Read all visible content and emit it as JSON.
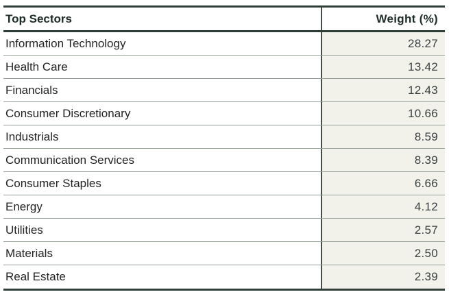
{
  "table": {
    "columns": [
      {
        "label": "Top Sectors"
      },
      {
        "label": "Weight (%)"
      }
    ],
    "rows": [
      {
        "sector": "Information Technology",
        "weight": "28.27"
      },
      {
        "sector": "Health Care",
        "weight": "13.42"
      },
      {
        "sector": "Financials",
        "weight": "12.43"
      },
      {
        "sector": "Consumer Discretionary",
        "weight": "10.66"
      },
      {
        "sector": "Industrials",
        "weight": "8.59"
      },
      {
        "sector": "Communication Services",
        "weight": "8.39"
      },
      {
        "sector": "Consumer Staples",
        "weight": "6.66"
      },
      {
        "sector": "Energy",
        "weight": "4.12"
      },
      {
        "sector": "Utilities",
        "weight": "2.57"
      },
      {
        "sector": "Materials",
        "weight": "2.50"
      },
      {
        "sector": "Real Estate",
        "weight": "2.39"
      }
    ]
  },
  "chart_data": {
    "type": "table",
    "title": "Top Sectors",
    "columns": [
      "Top Sectors",
      "Weight (%)"
    ],
    "rows": [
      [
        "Information Technology",
        28.27
      ],
      [
        "Health Care",
        13.42
      ],
      [
        "Financials",
        12.43
      ],
      [
        "Consumer Discretionary",
        10.66
      ],
      [
        "Industrials",
        8.59
      ],
      [
        "Communication Services",
        8.39
      ],
      [
        "Consumer Staples",
        6.66
      ],
      [
        "Energy",
        4.12
      ],
      [
        "Utilities",
        2.57
      ],
      [
        "Materials",
        2.5
      ],
      [
        "Real Estate",
        2.39
      ]
    ]
  },
  "colors": {
    "thick_border": "#2e3d35",
    "row_separator": "#94a096",
    "column_divider": "#415046",
    "weight_column_bg": "#f2f2ea",
    "header_text": "#1d2c26",
    "body_text": "#242424",
    "number_text": "#3a4144"
  }
}
